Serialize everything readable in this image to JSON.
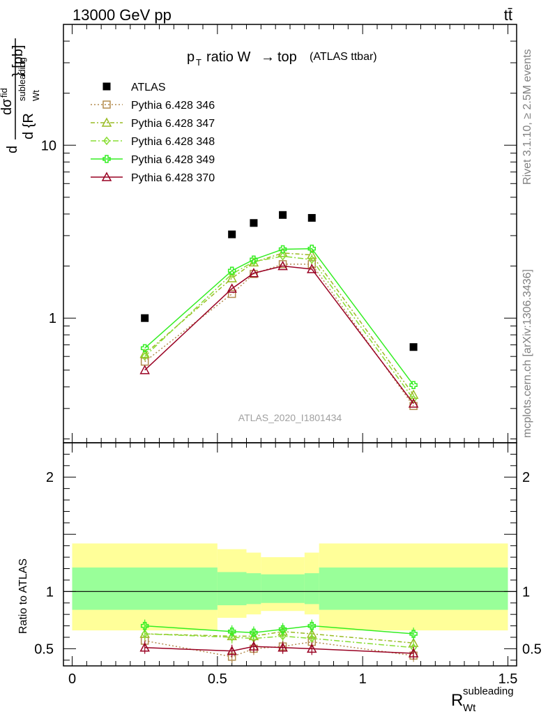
{
  "header": {
    "energy_label": "13000 GeV pp",
    "process_label": "tt̄"
  },
  "side_labels": {
    "rivet": "Rivet 3.1.10, ≥ 2.5M events",
    "mcplots": "mcplots.cern.ch [arXiv:1306.3436]"
  },
  "plot_title": {
    "main": "ratio W",
    "arrow": "→",
    "top": "top",
    "sub": "(ATLAS ttbar)",
    "pt_p": "p",
    "pt_T": "T"
  },
  "watermark": "ATLAS_2020_I1801434",
  "ylabel_top": {
    "d": "d",
    "dsigma": "dσ",
    "fid": "fid",
    "denom": "d {R",
    "sup": "subleading",
    "sub": "Wt",
    "unit": "} [pb]"
  },
  "ylabel_bottom": "Ratio to ATLAS",
  "xlabel": {
    "main": "R",
    "sup": "subleading",
    "sub": "Wt"
  },
  "chart_data": [
    {
      "type": "line",
      "panel": "main",
      "yscale": "log",
      "xlim": [
        -0.03,
        1.53
      ],
      "ylim": [
        0.19,
        50
      ],
      "x_ticks": [
        "0",
        "0.5",
        "1",
        "1.5"
      ],
      "y_ticks": [
        "1",
        "10"
      ],
      "legend_position": "top-left",
      "data_series": {
        "name": "ATLAS",
        "color": "#000000",
        "x": [
          0.25,
          0.55,
          0.625,
          0.725,
          0.825,
          1.175
        ],
        "y": [
          1.0,
          3.05,
          3.55,
          3.95,
          3.8,
          0.68
        ]
      },
      "series": [
        {
          "name": "Pythia 6.428 346",
          "color": "#b38b4d",
          "dash": "2,3",
          "marker": "square",
          "x": [
            0.25,
            0.55,
            0.625,
            0.725,
            0.825,
            1.175
          ],
          "y": [
            0.56,
            1.38,
            1.8,
            2.05,
            2.05,
            0.31
          ]
        },
        {
          "name": "Pythia 6.428 347",
          "color": "#99bb22",
          "dash": "6,3,2,3",
          "marker": "triangle",
          "x": [
            0.25,
            0.55,
            0.625,
            0.725,
            0.825,
            1.175
          ],
          "y": [
            0.62,
            1.7,
            2.1,
            2.38,
            2.32,
            0.36
          ]
        },
        {
          "name": "Pythia 6.428 348",
          "color": "#88dd33",
          "dash": "8,3,2,3",
          "marker": "diamond",
          "x": [
            0.25,
            0.55,
            0.625,
            0.725,
            0.825,
            1.175
          ],
          "y": [
            0.6,
            1.8,
            2.12,
            2.28,
            2.18,
            0.34
          ]
        },
        {
          "name": "Pythia 6.428 349",
          "color": "#33ee22",
          "dash": "",
          "marker": "cross",
          "x": [
            0.25,
            0.55,
            0.625,
            0.725,
            0.825,
            1.175
          ],
          "y": [
            0.67,
            1.88,
            2.18,
            2.5,
            2.52,
            0.41
          ]
        },
        {
          "name": "Pythia 6.428 370",
          "color": "#990022",
          "dash": "",
          "marker": "triangle",
          "x": [
            0.25,
            0.55,
            0.625,
            0.725,
            0.825,
            1.175
          ],
          "y": [
            0.5,
            1.48,
            1.82,
            2.0,
            1.92,
            0.32
          ]
        }
      ]
    },
    {
      "type": "line",
      "panel": "ratio",
      "xlim": [
        -0.03,
        1.53
      ],
      "ylim": [
        0.35,
        2.3
      ],
      "x_ticks": [
        "0",
        "0.5",
        "1",
        "1.5"
      ],
      "y_ticks": [
        "0.5",
        "1",
        "2"
      ],
      "bands": {
        "bins": [
          [
            0.0,
            0.5
          ],
          [
            0.5,
            0.6
          ],
          [
            0.6,
            0.65
          ],
          [
            0.65,
            0.8
          ],
          [
            0.8,
            0.85
          ],
          [
            0.85,
            1.5
          ]
        ],
        "outer": {
          "color": "#ffff99",
          "lo": [
            0.66,
            0.77,
            0.8,
            0.83,
            0.8,
            0.66
          ],
          "hi": [
            1.42,
            1.37,
            1.34,
            1.3,
            1.34,
            1.42
          ]
        },
        "inner": {
          "color": "#99ff99",
          "lo": [
            0.84,
            0.88,
            0.89,
            0.9,
            0.89,
            0.84
          ],
          "hi": [
            1.21,
            1.17,
            1.16,
            1.15,
            1.16,
            1.21
          ]
        }
      },
      "reference": 1,
      "series": [
        {
          "name": "Pythia 6.428 346",
          "x": [
            0.25,
            0.55,
            0.625,
            0.725,
            0.825,
            1.175
          ],
          "y": [
            0.57,
            0.43,
            0.5,
            0.52,
            0.56,
            0.44
          ]
        },
        {
          "name": "Pythia 6.428 347",
          "x": [
            0.25,
            0.55,
            0.625,
            0.725,
            0.825,
            1.175
          ],
          "y": [
            0.63,
            0.61,
            0.61,
            0.65,
            0.63,
            0.55
          ]
        },
        {
          "name": "Pythia 6.428 348",
          "x": [
            0.25,
            0.55,
            0.625,
            0.725,
            0.825,
            1.175
          ],
          "y": [
            0.63,
            0.6,
            0.59,
            0.61,
            0.59,
            0.51
          ]
        },
        {
          "name": "Pythia 6.428 349",
          "x": [
            0.25,
            0.55,
            0.625,
            0.725,
            0.825,
            1.175
          ],
          "y": [
            0.7,
            0.65,
            0.64,
            0.67,
            0.7,
            0.63
          ]
        },
        {
          "name": "Pythia 6.428 370",
          "x": [
            0.25,
            0.55,
            0.625,
            0.725,
            0.825,
            1.175
          ],
          "y": [
            0.51,
            0.48,
            0.52,
            0.51,
            0.5,
            0.46
          ]
        }
      ]
    }
  ]
}
